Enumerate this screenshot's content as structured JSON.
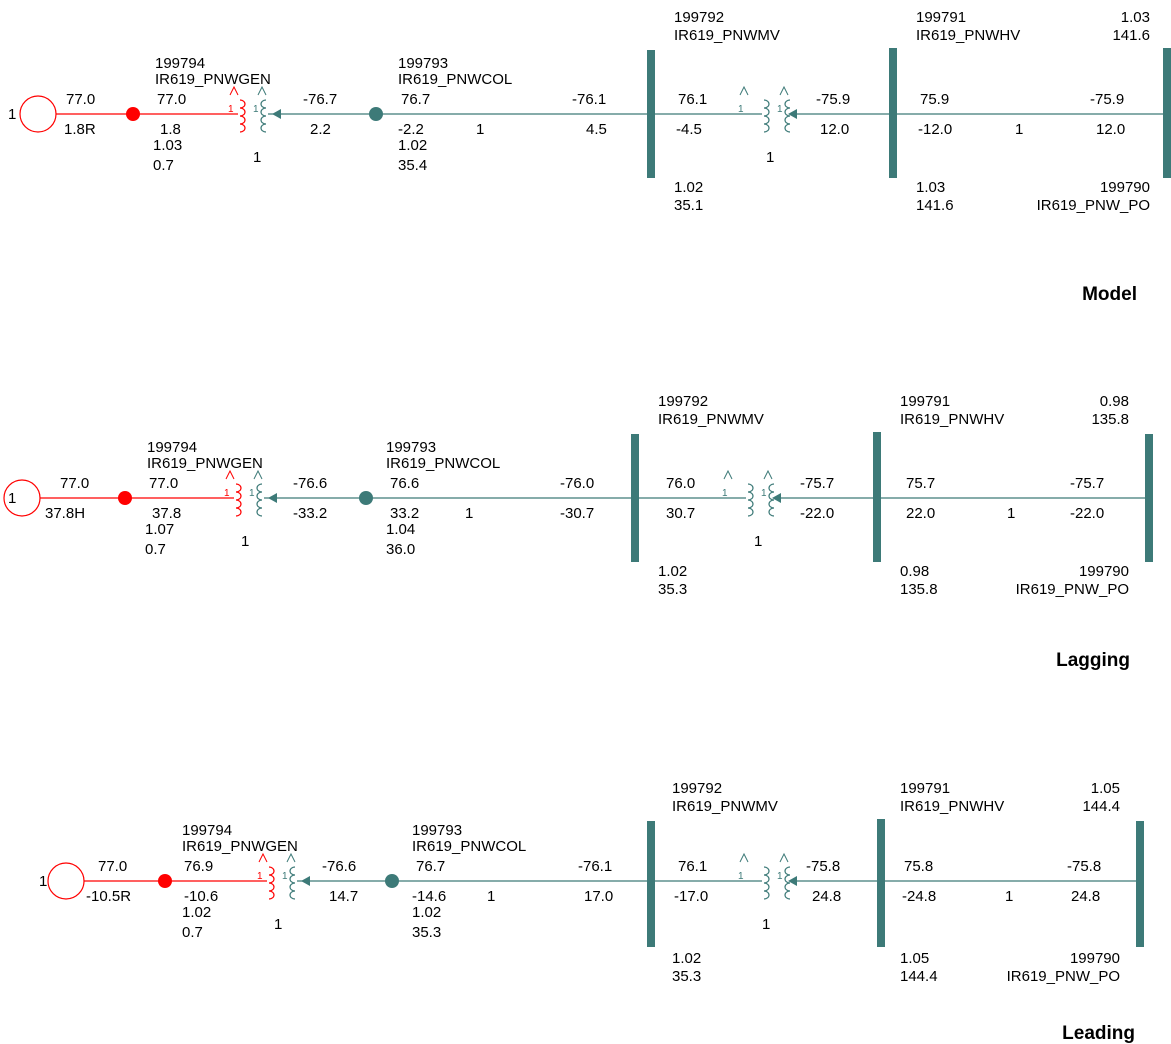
{
  "colors": {
    "generator": "#ff0000",
    "network": "#3d7a78",
    "text": "#000000"
  },
  "sections": [
    {
      "label": "Model",
      "gen_unit": "1",
      "gen_p": "77.0",
      "gen_q": "1.8R",
      "gen_bus": {
        "id": "199794",
        "name": "IR619_PNWGEN",
        "p": "77.0",
        "q": "1.8",
        "v_pu": "1.03",
        "v_kv": "0.7"
      },
      "gsu": {
        "unit": "1",
        "p_out": "-76.7",
        "q_out": "2.2"
      },
      "col_bus": {
        "id": "199793",
        "name": "IR619_PNWCOL",
        "p": "76.7",
        "q": "-2.2",
        "v_pu": "1.02",
        "v_kv": "35.4",
        "ckt": "1",
        "p_far": "-76.1",
        "q_far": "4.5"
      },
      "mv_bus": {
        "id": "199792",
        "name": "IR619_PNWMV",
        "v_pu": "1.02",
        "v_kv": "35.1",
        "p": "76.1",
        "q": "-4.5"
      },
      "mt": {
        "unit": "1",
        "p_out": "-75.9",
        "q_out": "12.0"
      },
      "hv_bus": {
        "id": "199791",
        "name": "IR619_PNWHV",
        "v_pu": "1.03",
        "v_kv": "141.6",
        "p": "75.9",
        "q": "-12.0",
        "ckt": "1",
        "p_far": "-75.9",
        "q_far": "12.0"
      },
      "po_bus": {
        "id": "199790",
        "name": "IR619_PNW_PO",
        "v_pu": "1.03",
        "v_kv": "141.6"
      }
    },
    {
      "label": "Lagging",
      "gen_unit": "1",
      "gen_p": "77.0",
      "gen_q": "37.8H",
      "gen_bus": {
        "id": "199794",
        "name": "IR619_PNWGEN",
        "p": "77.0",
        "q": "37.8",
        "v_pu": "1.07",
        "v_kv": "0.7"
      },
      "gsu": {
        "unit": "1",
        "p_out": "-76.6",
        "q_out": "-33.2"
      },
      "col_bus": {
        "id": "199793",
        "name": "IR619_PNWCOL",
        "p": "76.6",
        "q": "33.2",
        "v_pu": "1.04",
        "v_kv": "36.0",
        "ckt": "1",
        "p_far": "-76.0",
        "q_far": "-30.7"
      },
      "mv_bus": {
        "id": "199792",
        "name": "IR619_PNWMV",
        "v_pu": "1.02",
        "v_kv": "35.3",
        "p": "76.0",
        "q": "30.7"
      },
      "mt": {
        "unit": "1",
        "p_out": "-75.7",
        "q_out": "-22.0"
      },
      "hv_bus": {
        "id": "199791",
        "name": "IR619_PNWHV",
        "v_pu": "0.98",
        "v_kv": "135.8",
        "p": "75.7",
        "q": "22.0",
        "ckt": "1",
        "p_far": "-75.7",
        "q_far": "-22.0"
      },
      "po_bus": {
        "id": "199790",
        "name": "IR619_PNW_PO",
        "v_pu": "0.98",
        "v_kv": "135.8"
      }
    },
    {
      "label": "Leading",
      "gen_unit": "1",
      "gen_p": "77.0",
      "gen_q": "-10.5R",
      "gen_bus": {
        "id": "199794",
        "name": "IR619_PNWGEN",
        "p": "76.9",
        "q": "-10.6",
        "v_pu": "1.02",
        "v_kv": "0.7"
      },
      "gsu": {
        "unit": "1",
        "p_out": "-76.6",
        "q_out": "14.7"
      },
      "col_bus": {
        "id": "199793",
        "name": "IR619_PNWCOL",
        "p": "76.7",
        "q": "-14.6",
        "v_pu": "1.02",
        "v_kv": "35.3",
        "ckt": "1",
        "p_far": "-76.1",
        "q_far": "17.0"
      },
      "mv_bus": {
        "id": "199792",
        "name": "IR619_PNWMV",
        "v_pu": "1.02",
        "v_kv": "35.3",
        "p": "76.1",
        "q": "-17.0"
      },
      "mt": {
        "unit": "1",
        "p_out": "-75.8",
        "q_out": "24.8"
      },
      "hv_bus": {
        "id": "199791",
        "name": "IR619_PNWHV",
        "v_pu": "1.05",
        "v_kv": "144.4",
        "p": "75.8",
        "q": "-24.8",
        "ckt": "1",
        "p_far": "-75.8",
        "q_far": "24.8"
      },
      "po_bus": {
        "id": "199790",
        "name": "IR619_PNW_PO",
        "v_pu": "1.05",
        "v_kv": "144.4"
      }
    }
  ]
}
